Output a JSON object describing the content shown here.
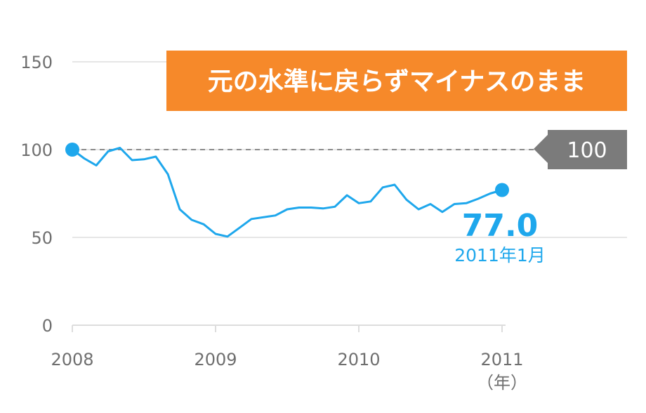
{
  "chart_data": {
    "type": "line",
    "title": "元の水準に戻らずマイナスのまま",
    "x_unit": "（年）",
    "x_ticks": [
      "2008",
      "2009",
      "2010",
      "2011"
    ],
    "y_ticks": [
      "0",
      "50",
      "100",
      "150"
    ],
    "ylim": [
      0,
      150
    ],
    "xlim": [
      2008.0,
      2011.0
    ],
    "grid": true,
    "reference": {
      "value": 100,
      "label": "100"
    },
    "callout": {
      "value": "77.0",
      "date": "2011年1月"
    },
    "colors": {
      "line": "#1ea7ec",
      "banner": "#f6892a",
      "reference_box": "#7b7b7b",
      "grid": "#dddddd",
      "ref_line": "#8a8a8a",
      "tick": "#6f6f6f"
    },
    "series": [
      {
        "x": [
          2008.0,
          2008.083,
          2008.167,
          2008.25,
          2008.333,
          2008.417,
          2008.5,
          2008.583,
          2008.667,
          2008.75,
          2008.833,
          2008.917,
          2009.0,
          2009.083,
          2009.167,
          2009.25,
          2009.333,
          2009.417,
          2009.5,
          2009.583,
          2009.667,
          2009.75,
          2009.833,
          2009.917,
          2010.0,
          2010.083,
          2010.167,
          2010.25,
          2010.333,
          2010.417,
          2010.5,
          2010.583,
          2010.667,
          2010.75,
          2010.833,
          2010.917,
          2011.0
        ],
        "y": [
          100,
          95,
          91,
          99,
          101,
          94,
          94.5,
          96,
          86,
          66,
          60,
          57.5,
          52,
          50.5,
          55.5,
          60.5,
          61.5,
          62.5,
          66,
          67,
          67,
          66.5,
          67.5,
          74,
          69.5,
          70.5,
          78.5,
          80,
          71.5,
          66,
          69,
          64.5,
          69,
          69.5,
          72,
          75,
          77
        ]
      }
    ]
  }
}
